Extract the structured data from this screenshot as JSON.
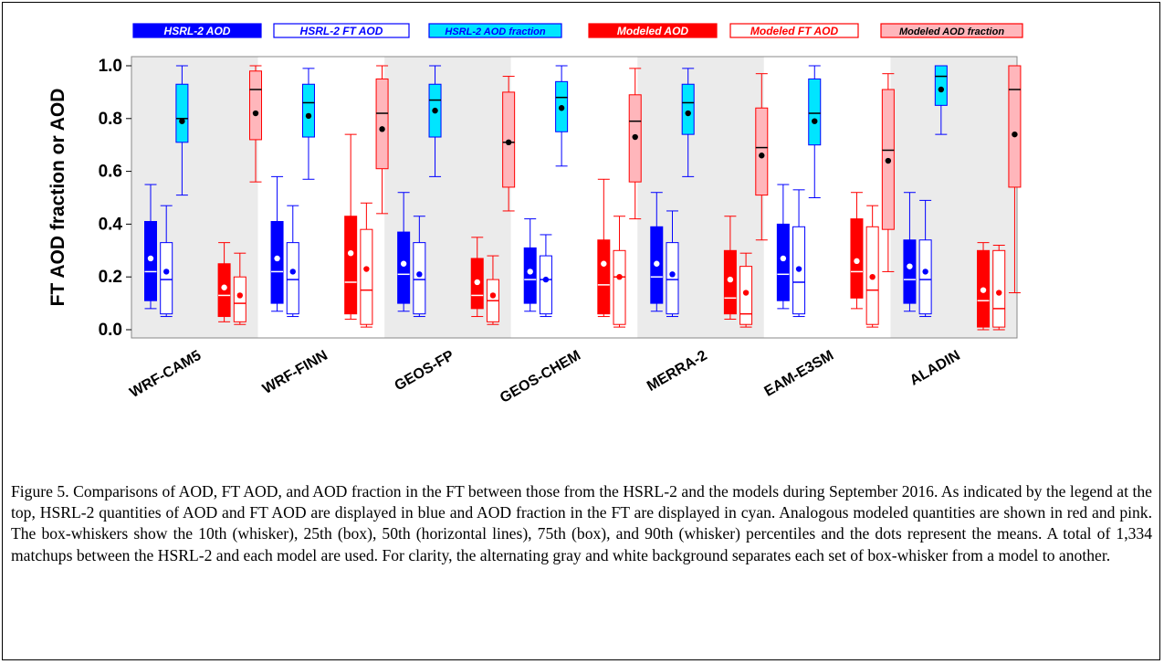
{
  "chart_data": {
    "type": "box",
    "ylabel": "FT AOD fraction or AOD",
    "ylim": [
      0.0,
      1.0
    ],
    "yticks": [
      "0.0",
      "0.2",
      "0.4",
      "0.6",
      "0.8",
      "1.0"
    ],
    "categories": [
      "WRF-CAM5",
      "WRF-FINN",
      "GEOS-FP",
      "GEOS-CHEM",
      "MERRA-2",
      "EAM-E3SM",
      "ALADIN"
    ],
    "legend": [
      {
        "label": "HSRL-2 AOD",
        "fill": "#0000ff",
        "stroke": "#0000ff",
        "text_color": "#ffffff"
      },
      {
        "label": "HSRL-2 FT AOD",
        "fill": "#ffffff",
        "stroke": "#0000ff",
        "text_color": "#0000ff"
      },
      {
        "label": "HSRL-2 AOD fraction",
        "fill": "#00e5ff",
        "stroke": "#0000ff",
        "text_color": "#0000ff"
      },
      {
        "label": "Modeled AOD",
        "fill": "#ff0000",
        "stroke": "#ff0000",
        "text_color": "#ffffff"
      },
      {
        "label": "Modeled FT AOD",
        "fill": "#ffffff",
        "stroke": "#ff0000",
        "text_color": "#ff0000"
      },
      {
        "label": "Modeled AOD fraction",
        "fill": "#ffb6bb",
        "stroke": "#ff0000",
        "text_color": "#000000"
      }
    ],
    "series": [
      {
        "name": "HSRL-2 AOD",
        "fill": "#0000ff",
        "stroke": "#0000ff",
        "median_color": "#ffffff",
        "mean_color": "#ffffff",
        "stats": [
          {
            "p10": 0.08,
            "p25": 0.11,
            "median": 0.22,
            "p75": 0.41,
            "p90": 0.55,
            "mean": 0.27
          },
          {
            "p10": 0.07,
            "p25": 0.1,
            "median": 0.22,
            "p75": 0.41,
            "p90": 0.58,
            "mean": 0.27
          },
          {
            "p10": 0.07,
            "p25": 0.1,
            "median": 0.21,
            "p75": 0.37,
            "p90": 0.52,
            "mean": 0.25
          },
          {
            "p10": 0.07,
            "p25": 0.1,
            "median": 0.19,
            "p75": 0.31,
            "p90": 0.42,
            "mean": 0.22
          },
          {
            "p10": 0.07,
            "p25": 0.1,
            "median": 0.2,
            "p75": 0.39,
            "p90": 0.52,
            "mean": 0.25
          },
          {
            "p10": 0.08,
            "p25": 0.11,
            "median": 0.21,
            "p75": 0.4,
            "p90": 0.55,
            "mean": 0.27
          },
          {
            "p10": 0.07,
            "p25": 0.1,
            "median": 0.19,
            "p75": 0.34,
            "p90": 0.52,
            "mean": 0.24
          }
        ]
      },
      {
        "name": "HSRL-2 FT AOD",
        "fill": "#ffffff",
        "stroke": "#0000ff",
        "median_color": "#0000ff",
        "mean_color": "#0000ff",
        "stats": [
          {
            "p10": 0.05,
            "p25": 0.06,
            "median": 0.19,
            "p75": 0.33,
            "p90": 0.47,
            "mean": 0.22
          },
          {
            "p10": 0.05,
            "p25": 0.06,
            "median": 0.19,
            "p75": 0.33,
            "p90": 0.47,
            "mean": 0.22
          },
          {
            "p10": 0.05,
            "p25": 0.06,
            "median": 0.19,
            "p75": 0.33,
            "p90": 0.43,
            "mean": 0.21
          },
          {
            "p10": 0.05,
            "p25": 0.06,
            "median": 0.19,
            "p75": 0.28,
            "p90": 0.36,
            "mean": 0.19
          },
          {
            "p10": 0.05,
            "p25": 0.06,
            "median": 0.19,
            "p75": 0.33,
            "p90": 0.45,
            "mean": 0.21
          },
          {
            "p10": 0.05,
            "p25": 0.06,
            "median": 0.18,
            "p75": 0.39,
            "p90": 0.53,
            "mean": 0.23
          },
          {
            "p10": 0.05,
            "p25": 0.06,
            "median": 0.19,
            "p75": 0.34,
            "p90": 0.49,
            "mean": 0.22
          }
        ]
      },
      {
        "name": "HSRL-2 AOD fraction",
        "fill": "#00e5ff",
        "stroke": "#0000ff",
        "median_color": "#000000",
        "mean_color": "#000000",
        "stats": [
          {
            "p10": 0.51,
            "p25": 0.71,
            "median": 0.8,
            "p75": 0.93,
            "p90": 1.0,
            "mean": 0.79
          },
          {
            "p10": 0.57,
            "p25": 0.73,
            "median": 0.86,
            "p75": 0.93,
            "p90": 0.99,
            "mean": 0.81
          },
          {
            "p10": 0.58,
            "p25": 0.73,
            "median": 0.87,
            "p75": 0.93,
            "p90": 1.0,
            "mean": 0.83
          },
          {
            "p10": 0.62,
            "p25": 0.75,
            "median": 0.88,
            "p75": 0.94,
            "p90": 1.0,
            "mean": 0.84
          },
          {
            "p10": 0.58,
            "p25": 0.74,
            "median": 0.86,
            "p75": 0.93,
            "p90": 0.99,
            "mean": 0.82
          },
          {
            "p10": 0.5,
            "p25": 0.7,
            "median": 0.82,
            "p75": 0.95,
            "p90": 1.0,
            "mean": 0.79
          },
          {
            "p10": 0.74,
            "p25": 0.85,
            "median": 0.96,
            "p75": 1.0,
            "p90": 1.0,
            "mean": 0.91
          }
        ]
      },
      {
        "name": "Modeled AOD",
        "fill": "#ff0000",
        "stroke": "#ff0000",
        "median_color": "#ffffff",
        "mean_color": "#ffffff",
        "stats": [
          {
            "p10": 0.03,
            "p25": 0.05,
            "median": 0.13,
            "p75": 0.25,
            "p90": 0.33,
            "mean": 0.16
          },
          {
            "p10": 0.04,
            "p25": 0.06,
            "median": 0.18,
            "p75": 0.43,
            "p90": 0.74,
            "mean": 0.29
          },
          {
            "p10": 0.05,
            "p25": 0.08,
            "median": 0.13,
            "p75": 0.27,
            "p90": 0.35,
            "mean": 0.18
          },
          {
            "p10": 0.05,
            "p25": 0.06,
            "median": 0.17,
            "p75": 0.34,
            "p90": 0.57,
            "mean": 0.25
          },
          {
            "p10": 0.04,
            "p25": 0.06,
            "median": 0.12,
            "p75": 0.3,
            "p90": 0.43,
            "mean": 0.19
          },
          {
            "p10": 0.08,
            "p25": 0.12,
            "median": 0.22,
            "p75": 0.42,
            "p90": 0.52,
            "mean": 0.26
          },
          {
            "p10": 0.0,
            "p25": 0.01,
            "median": 0.11,
            "p75": 0.3,
            "p90": 0.33,
            "mean": 0.15
          }
        ]
      },
      {
        "name": "Modeled FT AOD",
        "fill": "#ffffff",
        "stroke": "#ff0000",
        "median_color": "#ff0000",
        "mean_color": "#ff0000",
        "stats": [
          {
            "p10": 0.02,
            "p25": 0.03,
            "median": 0.1,
            "p75": 0.2,
            "p90": 0.29,
            "mean": 0.13
          },
          {
            "p10": 0.01,
            "p25": 0.02,
            "median": 0.15,
            "p75": 0.38,
            "p90": 0.48,
            "mean": 0.23
          },
          {
            "p10": 0.02,
            "p25": 0.03,
            "median": 0.11,
            "p75": 0.19,
            "p90": 0.28,
            "mean": 0.13
          },
          {
            "p10": 0.01,
            "p25": 0.02,
            "median": 0.2,
            "p75": 0.3,
            "p90": 0.43,
            "mean": 0.2
          },
          {
            "p10": 0.01,
            "p25": 0.02,
            "median": 0.06,
            "p75": 0.24,
            "p90": 0.29,
            "mean": 0.14
          },
          {
            "p10": 0.01,
            "p25": 0.02,
            "median": 0.15,
            "p75": 0.39,
            "p90": 0.47,
            "mean": 0.2
          },
          {
            "p10": 0.0,
            "p25": 0.01,
            "median": 0.08,
            "p75": 0.3,
            "p90": 0.32,
            "mean": 0.14
          }
        ]
      },
      {
        "name": "Modeled AOD fraction",
        "fill": "#ffb6bb",
        "stroke": "#ff0000",
        "median_color": "#000000",
        "mean_color": "#000000",
        "stats": [
          {
            "p10": 0.56,
            "p25": 0.72,
            "median": 0.91,
            "p75": 0.98,
            "p90": 1.0,
            "mean": 0.82
          },
          {
            "p10": 0.44,
            "p25": 0.61,
            "median": 0.82,
            "p75": 0.95,
            "p90": 1.0,
            "mean": 0.76
          },
          {
            "p10": 0.45,
            "p25": 0.54,
            "median": 0.71,
            "p75": 0.9,
            "p90": 0.96,
            "mean": 0.71
          },
          {
            "p10": 0.42,
            "p25": 0.56,
            "median": 0.79,
            "p75": 0.89,
            "p90": 0.99,
            "mean": 0.73
          },
          {
            "p10": 0.34,
            "p25": 0.51,
            "median": 0.69,
            "p75": 0.84,
            "p90": 0.97,
            "mean": 0.66
          },
          {
            "p10": 0.22,
            "p25": 0.38,
            "median": 0.68,
            "p75": 0.91,
            "p90": 0.97,
            "mean": 0.64
          },
          {
            "p10": 0.14,
            "p25": 0.54,
            "median": 0.91,
            "p75": 1.0,
            "p90": 1.0,
            "mean": 0.74
          }
        ]
      }
    ]
  },
  "caption": "Figure 5. Comparisons of AOD, FT AOD, and AOD fraction in the FT between those from the HSRL-2 and the models during September 2016. As indicated by the legend at the top, HSRL-2 quantities of AOD and FT AOD are displayed in blue and AOD fraction in the FT are displayed in cyan. Analogous modeled quantities are shown in red and pink. The box-whiskers show the 10th (whisker), 25th (box), 50th (horizontal lines), 75th (box), and 90th (whisker) percentiles and the dots represent the means. A total of 1,334 matchups between the HSRL-2 and each model are used. For clarity, the alternating gray and white background separates each set of box-whisker from a model to another."
}
